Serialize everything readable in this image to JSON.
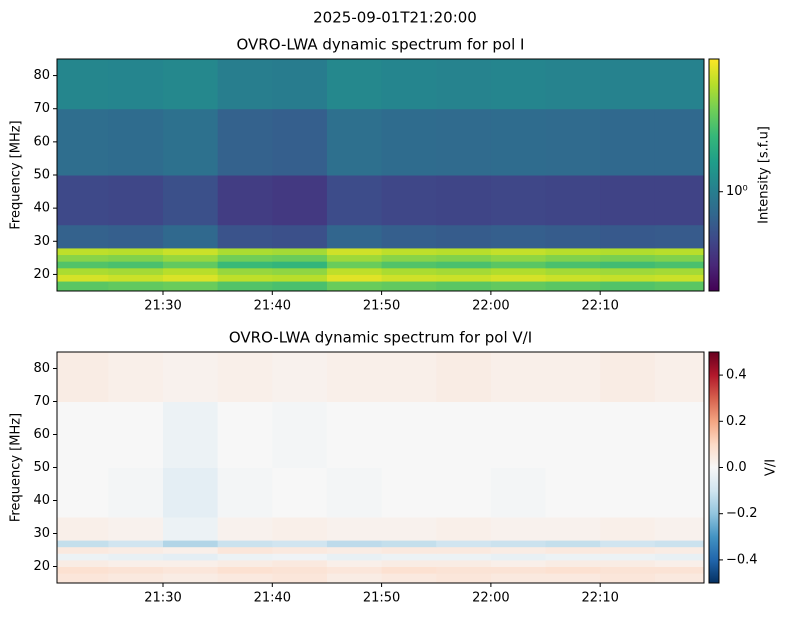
{
  "title": "2025-09-01T21:20:00",
  "chart_data": [
    {
      "type": "heatmap",
      "title": "OVRO-LWA dynamic spectrum for pol I",
      "ylabel": "Frequency [MHz]",
      "xlim": [
        1280.3,
        1339.5
      ],
      "ylim": [
        15,
        85
      ],
      "xticks": [
        {
          "value": 1290,
          "label": "21:30"
        },
        {
          "value": 1300,
          "label": "21:40"
        },
        {
          "value": 1310,
          "label": "21:50"
        },
        {
          "value": 1320,
          "label": "22:00"
        },
        {
          "value": 1330,
          "label": "22:10"
        }
      ],
      "yticks": [
        20,
        30,
        40,
        50,
        60,
        70,
        80
      ],
      "x_bins": [
        1280.3,
        1285,
        1290,
        1295,
        1300,
        1305,
        1310,
        1315,
        1320,
        1325,
        1330,
        1335,
        1339.5
      ],
      "y_bins": [
        15,
        18,
        20,
        22,
        24,
        26,
        28,
        35,
        50,
        70,
        85
      ],
      "z": [
        [
          2.4,
          2.5,
          2.6,
          2.3,
          2.2,
          2.6,
          2.5,
          2.4,
          2.5,
          2.4,
          2.3,
          2.4
        ],
        [
          4.2,
          4.0,
          4.3,
          3.8,
          3.7,
          4.4,
          4.1,
          4.0,
          4.2,
          4.0,
          3.9,
          4.0
        ],
        [
          3.5,
          3.4,
          3.7,
          3.2,
          3.1,
          3.8,
          3.5,
          3.4,
          3.6,
          3.4,
          3.3,
          3.4
        ],
        [
          2.3,
          2.2,
          2.5,
          2.0,
          1.9,
          2.6,
          2.3,
          2.2,
          2.4,
          2.2,
          2.1,
          2.2
        ],
        [
          3.0,
          2.9,
          3.2,
          2.7,
          2.6,
          3.3,
          3.0,
          2.9,
          3.1,
          2.9,
          2.8,
          2.9
        ],
        [
          3.8,
          3.7,
          4.0,
          3.5,
          3.4,
          4.1,
          3.8,
          3.7,
          3.9,
          3.7,
          3.6,
          3.7
        ],
        [
          0.72,
          0.7,
          0.78,
          0.62,
          0.6,
          0.75,
          0.7,
          0.68,
          0.7,
          0.68,
          0.66,
          0.67
        ],
        [
          0.56,
          0.55,
          0.6,
          0.5,
          0.48,
          0.58,
          0.55,
          0.54,
          0.55,
          0.54,
          0.53,
          0.53
        ],
        [
          0.82,
          0.8,
          0.85,
          0.72,
          0.7,
          0.84,
          0.8,
          0.79,
          0.8,
          0.79,
          0.78,
          0.78
        ],
        [
          1.1,
          1.08,
          1.12,
          1.0,
          0.98,
          1.12,
          1.08,
          1.06,
          1.08,
          1.06,
          1.05,
          1.05
        ]
      ],
      "colormap": "viridis",
      "colorbar": {
        "label": "Intensity [s.f.u]",
        "log": true,
        "lim": [
          0.3,
          5
        ],
        "ticks": [
          {
            "value": 1,
            "label": "10⁰"
          }
        ]
      }
    },
    {
      "type": "heatmap",
      "title": "OVRO-LWA dynamic spectrum for pol V/I",
      "ylabel": "Frequency [MHz]",
      "xlim": [
        1280.3,
        1339.5
      ],
      "ylim": [
        15,
        85
      ],
      "xticks": [
        {
          "value": 1290,
          "label": "21:30"
        },
        {
          "value": 1300,
          "label": "21:40"
        },
        {
          "value": 1310,
          "label": "21:50"
        },
        {
          "value": 1320,
          "label": "22:00"
        },
        {
          "value": 1330,
          "label": "22:10"
        }
      ],
      "yticks": [
        20,
        30,
        40,
        50,
        60,
        70,
        80
      ],
      "x_bins": [
        1280.3,
        1285,
        1290,
        1295,
        1300,
        1305,
        1310,
        1315,
        1320,
        1325,
        1330,
        1335,
        1339.5
      ],
      "y_bins": [
        15,
        18,
        20,
        22,
        24,
        26,
        28,
        35,
        50,
        70,
        85
      ],
      "z": [
        [
          0.06,
          0.05,
          0.04,
          0.05,
          0.06,
          0.04,
          0.05,
          0.06,
          0.05,
          0.05,
          0.06,
          0.05
        ],
        [
          0.08,
          0.07,
          0.06,
          0.08,
          0.07,
          0.06,
          0.08,
          0.07,
          0.07,
          0.08,
          0.07,
          0.07
        ],
        [
          0.04,
          0.03,
          0.03,
          0.04,
          0.05,
          0.03,
          0.04,
          0.04,
          0.03,
          0.04,
          0.04,
          0.03
        ],
        [
          -0.03,
          -0.04,
          -0.05,
          -0.03,
          -0.02,
          -0.04,
          -0.03,
          -0.03,
          -0.04,
          -0.03,
          -0.03,
          -0.04
        ],
        [
          0.05,
          0.04,
          0.03,
          0.06,
          0.05,
          0.04,
          0.05,
          0.05,
          0.04,
          0.05,
          0.05,
          0.04
        ],
        [
          -0.12,
          -0.1,
          -0.15,
          -0.11,
          -0.1,
          -0.13,
          -0.12,
          -0.1,
          -0.11,
          -0.12,
          -0.1,
          -0.11
        ],
        [
          0.03,
          0.02,
          -0.03,
          0.02,
          0.03,
          0.02,
          0.02,
          0.03,
          0.02,
          0.02,
          0.03,
          0.02
        ],
        [
          0.0,
          -0.01,
          -0.05,
          -0.01,
          0.0,
          -0.01,
          0.0,
          0.0,
          -0.01,
          0.0,
          0.0,
          0.0
        ],
        [
          0.0,
          0.0,
          -0.03,
          0.0,
          -0.01,
          0.0,
          0.0,
          0.0,
          0.0,
          0.0,
          0.0,
          0.0
        ],
        [
          0.04,
          0.03,
          0.02,
          0.03,
          0.02,
          0.03,
          0.03,
          0.04,
          0.03,
          0.03,
          0.04,
          0.03
        ]
      ],
      "colormap": "RdBu_r",
      "colorbar": {
        "label": "V/I",
        "log": false,
        "lim": [
          -0.5,
          0.5
        ],
        "ticks": [
          0.4,
          0.2,
          {
            "value": 0,
            "label": "0.0"
          },
          {
            "value": -0.2,
            "label": "−0.2"
          },
          {
            "value": -0.4,
            "label": "−0.4"
          }
        ]
      }
    }
  ]
}
